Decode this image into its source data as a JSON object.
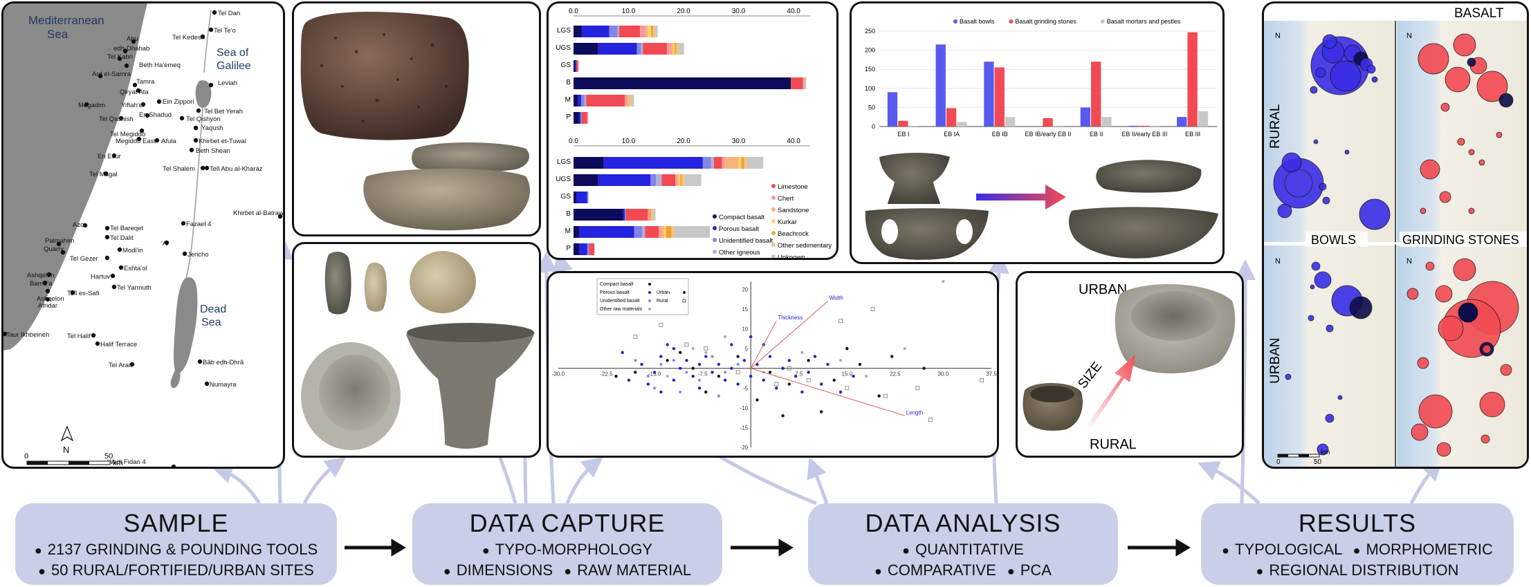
{
  "map": {
    "sea_labels": [
      "Mediterranean",
      "Sea"
    ],
    "galilee_labels": [
      "Sea of",
      "Galilee"
    ],
    "dead_sea_labels": [
      "Dead",
      "Sea"
    ],
    "north_label": "N",
    "scale": {
      "start": "0",
      "end": "50",
      "unit": "km"
    },
    "sites": [
      "Tel Dan",
      "Tel Te'o",
      "Tel Kedesh",
      "Abu",
      "edh-Dhahab",
      "Tel Kabri",
      "Beth Ha'emeq",
      "Ard el-Samra",
      "Tamra",
      "Qiryat Ata",
      "Ein Zippori",
      "Megadim",
      "Yiftah'el",
      "Tel Bet Yerah",
      "Leviah",
      "En Shadud",
      "Tel Qashish",
      "Tel Qishyon",
      "Tel Megiddo",
      "Yaqush",
      "Megiddo East",
      "Afula",
      "Khirbet et-Tuwal",
      "Beth Shean",
      "En Esur",
      "Tel Shalem",
      "Tell Abu al-Kharaz",
      "Tel Magal",
      "Khirbet al-Batrawy",
      "Fazael 4",
      "Azor",
      "Tel Bareqet",
      "Tel Dalit",
      "Palmahim",
      "Quarry",
      "'Ai",
      "Jericho",
      "Tel Gezer",
      "Modi'in",
      "Ashqelon",
      "Barne'a",
      "Eshta'ol",
      "Hartuv",
      "Tel Yarmuth",
      "Tell es-Safi",
      "Ashqelon",
      "Afridar",
      "Taur Ikhbeineh",
      "Tel Halif",
      "Halif Terrace",
      "Tel Arad",
      "Bâb edh-Dhrâ",
      "Numayra",
      "Wadi Fidan 4"
    ]
  },
  "top_chart": {
    "ticks": [
      "0.0",
      "10.0",
      "20.0",
      "30.0",
      "40.0"
    ],
    "categories": [
      "LGS",
      "UGS",
      "GS",
      "B",
      "M",
      "P"
    ]
  },
  "bottom_chart": {
    "ticks": [
      "0.0",
      "10.0",
      "20.0",
      "30.0",
      "40.0"
    ],
    "categories": [
      "LGS",
      "UGS",
      "GS",
      "B",
      "M",
      "P"
    ],
    "legend_left": [
      "Compact basalt",
      "Porous basalt",
      "Unidentified basalt",
      "Other igneous"
    ],
    "legend_right": [
      "Limestone",
      "Chert",
      "Sandstone",
      "Kurkar",
      "Beachrock",
      "Other sedimentary",
      "Unknown"
    ]
  },
  "chart_data": [
    {
      "type": "bar",
      "orientation": "horizontal",
      "stacked": true,
      "categories": [
        "LGS",
        "UGS",
        "GS",
        "B",
        "M",
        "P"
      ],
      "xlim": [
        0,
        43
      ],
      "series": [
        {
          "name": "Compact basalt",
          "color": "#0c0c5a",
          "values": [
            1.5,
            4.5,
            0.3,
            39.5,
            0.8,
            1.0
          ]
        },
        {
          "name": "Porous basalt",
          "color": "#2323e0",
          "values": [
            5,
            7,
            0.2,
            0,
            0.6,
            0.3
          ]
        },
        {
          "name": "Unidentified basalt",
          "color": "#8585e6",
          "values": [
            1.5,
            0.8,
            0,
            0,
            0.6,
            0.2
          ]
        },
        {
          "name": "Other igneous",
          "color": "#b0b0d8",
          "values": [
            0.3,
            0.3,
            0,
            0,
            0.3,
            0
          ]
        },
        {
          "name": "Limestone",
          "color": "#f24a52",
          "values": [
            3.8,
            4.4,
            0.3,
            2.2,
            7.0,
            1.0
          ]
        },
        {
          "name": "Chert",
          "color": "#f79a9a",
          "values": [
            1.0,
            0.8,
            0.1,
            0.3,
            0.5,
            0.1
          ]
        },
        {
          "name": "Sandstone",
          "color": "#f7b27a",
          "values": [
            0.4,
            0.3,
            0,
            0,
            0.3,
            0
          ]
        },
        {
          "name": "Kurkar",
          "color": "#fad56e",
          "values": [
            0.6,
            0.3,
            0,
            0,
            0.1,
            0
          ]
        },
        {
          "name": "Beachrock",
          "color": "#f3a030",
          "values": [
            0.4,
            0.3,
            0,
            0,
            0.1,
            0
          ]
        },
        {
          "name": "Other sedimentary",
          "color": "#f4c480",
          "values": [
            0.3,
            0.4,
            0,
            0,
            0.2,
            0
          ]
        },
        {
          "name": "Unknown",
          "color": "#c8c8c8",
          "values": [
            0.5,
            1.0,
            0.1,
            0.3,
            0.5,
            0.1
          ]
        }
      ]
    },
    {
      "type": "bar",
      "orientation": "horizontal",
      "stacked": true,
      "categories": [
        "LGS",
        "UGS",
        "GS",
        "B",
        "M",
        "P"
      ],
      "xlim": [
        0,
        43
      ],
      "series": [
        {
          "name": "Compact basalt",
          "color": "#0c0c5a",
          "values": [
            5.5,
            4.5,
            0.5,
            9.0,
            1.0,
            1.0
          ]
        },
        {
          "name": "Porous basalt",
          "color": "#2323e0",
          "values": [
            18,
            9.5,
            2.0,
            0.3,
            10.0,
            1.5
          ]
        },
        {
          "name": "Unidentified basalt",
          "color": "#8585e6",
          "values": [
            1.5,
            1.0,
            0.2,
            0.2,
            1.5,
            0.3
          ]
        },
        {
          "name": "Other igneous",
          "color": "#b0b0d8",
          "values": [
            0.5,
            1.0,
            0,
            0,
            0.5,
            0
          ]
        },
        {
          "name": "Limestone",
          "color": "#f24a52",
          "values": [
            1.5,
            2.5,
            0,
            4.0,
            2.5,
            1.0
          ]
        },
        {
          "name": "Chert",
          "color": "#f79a9a",
          "values": [
            0.5,
            0.3,
            0,
            0.3,
            0.5,
            0
          ]
        },
        {
          "name": "Sandstone",
          "color": "#f7b27a",
          "values": [
            2.5,
            0.3,
            0,
            0,
            0.5,
            0
          ]
        },
        {
          "name": "Kurkar",
          "color": "#fad56e",
          "values": [
            0.5,
            0.3,
            0,
            0,
            0.3,
            0
          ]
        },
        {
          "name": "Beachrock",
          "color": "#f3a030",
          "values": [
            0.5,
            0.3,
            0,
            0.3,
            1.0,
            0
          ]
        },
        {
          "name": "Other sedimentary",
          "color": "#f4c480",
          "values": [
            0.5,
            0.5,
            0,
            0.3,
            0.5,
            0
          ]
        },
        {
          "name": "Unknown",
          "color": "#c8c8c8",
          "values": [
            3.0,
            3.0,
            0,
            0.5,
            6.5,
            0
          ]
        }
      ]
    },
    {
      "type": "scatter",
      "xlim": [
        -30,
        37.5
      ],
      "ylim": [
        -20,
        22
      ],
      "x_ticks": [
        "-30.0",
        "-22.5",
        "-15.0",
        "-7.5",
        "7.5",
        "15.0",
        "22.5",
        "30.0",
        "37.5"
      ],
      "y_ticks": [
        "20",
        "15",
        "10",
        "5",
        "-5",
        "-10",
        "-15",
        "-20"
      ],
      "legend": [
        "Compact basalt",
        "Porous basalt",
        "Unidentified basalt",
        "Other raw materials",
        "Urban",
        "Rural"
      ],
      "loadings": [
        {
          "label": "Width",
          "x": 12,
          "y": 17
        },
        {
          "label": "Thickness",
          "x": 4,
          "y": 12
        },
        {
          "label": "Length",
          "x": 24,
          "y": -12
        }
      ],
      "points": {
        "compact": [
          [
            -18,
            -1
          ],
          [
            -13,
            2
          ],
          [
            -9,
            0
          ],
          [
            -5,
            -2
          ],
          [
            -2,
            3
          ],
          [
            3,
            -1
          ],
          [
            6,
            -4
          ],
          [
            9,
            2
          ],
          [
            13,
            -3
          ],
          [
            17,
            1
          ],
          [
            20,
            -7
          ],
          [
            -21,
            -2
          ],
          [
            -7,
            -6
          ],
          [
            1,
            -8
          ],
          [
            11,
            -11
          ],
          [
            15,
            5
          ],
          [
            22,
            3
          ],
          [
            -11,
            4
          ],
          [
            27,
            0
          ],
          [
            5,
            -12
          ]
        ],
        "porous": [
          [
            -20,
            4
          ],
          [
            -17,
            1
          ],
          [
            -15,
            -1
          ],
          [
            -14,
            3
          ],
          [
            -12,
            -3
          ],
          [
            -11,
            0
          ],
          [
            -10,
            2
          ],
          [
            -9,
            -2
          ],
          [
            -8,
            1
          ],
          [
            -7,
            3
          ],
          [
            -6,
            -1
          ],
          [
            -5,
            1
          ],
          [
            -4,
            -3
          ],
          [
            -3,
            0
          ],
          [
            -2,
            -4
          ],
          [
            -1,
            2
          ],
          [
            0,
            -2
          ],
          [
            1,
            1
          ],
          [
            2,
            -3
          ],
          [
            3,
            3
          ],
          [
            4,
            -5
          ],
          [
            5,
            0
          ],
          [
            6,
            2
          ],
          [
            7,
            -2
          ],
          [
            8,
            -6
          ],
          [
            9,
            -1
          ],
          [
            10,
            3
          ],
          [
            11,
            -4
          ],
          [
            12,
            1
          ],
          [
            -16,
            -4
          ],
          [
            -13,
            6
          ],
          [
            -12,
            5
          ],
          [
            -19,
            -3
          ],
          [
            -14,
            -6
          ],
          [
            0,
            8
          ],
          [
            14,
            -6
          ],
          [
            16,
            -2
          ],
          [
            -8,
            -5
          ],
          [
            -3,
            6
          ],
          [
            2,
            6
          ]
        ],
        "unidentified": [
          [
            -18,
            2
          ],
          [
            -16,
            -2
          ],
          [
            -14,
            1
          ],
          [
            -12,
            2
          ],
          [
            -10,
            -1
          ],
          [
            -8,
            -3
          ],
          [
            -6,
            3
          ],
          [
            -4,
            -1
          ],
          [
            -2,
            1
          ],
          [
            -15,
            -5
          ],
          [
            -11,
            -6
          ],
          [
            -5,
            -7
          ]
        ],
        "other": [
          [
            -13,
            -2
          ],
          [
            -7,
            4
          ],
          [
            2,
            -1
          ],
          [
            8,
            4
          ],
          [
            14,
            2
          ],
          [
            18,
            -2
          ],
          [
            24,
            5
          ],
          [
            30,
            22
          ],
          [
            -9,
            5
          ],
          [
            -4,
            8
          ]
        ],
        "urban_open": [
          [
            -7,
            5
          ],
          [
            -18,
            8
          ],
          [
            -14,
            11
          ],
          [
            -10,
            6
          ],
          [
            4,
            -4
          ],
          [
            15,
            -5
          ],
          [
            21,
            -7
          ],
          [
            26,
            -5
          ],
          [
            36,
            -3
          ],
          [
            28,
            -13
          ],
          [
            19,
            15
          ],
          [
            14,
            12
          ],
          [
            -2,
            -1
          ],
          [
            9,
            -3
          ],
          [
            6,
            0
          ]
        ]
      }
    },
    {
      "type": "bar",
      "categories": [
        "EB I",
        "EB IA",
        "EB IB",
        "EB IB/early EB II",
        "EB II",
        "EB II/early EB III",
        "EB III"
      ],
      "ylim": [
        0,
        250
      ],
      "y_ticks": [
        "0",
        "50",
        "100",
        "150",
        "200",
        "250"
      ],
      "series": [
        {
          "name": "Basalt bowls",
          "color": "#5a5af0",
          "values": [
            90,
            215,
            170,
            0,
            50,
            2,
            25
          ]
        },
        {
          "name": "Basalt grinding stones",
          "color": "#f24a52",
          "values": [
            15,
            48,
            155,
            22,
            170,
            2,
            247
          ]
        },
        {
          "name": "Basalt mortars and pestles",
          "color": "#c8c8c8",
          "values": [
            2,
            12,
            25,
            2,
            25,
            2,
            40
          ]
        }
      ]
    }
  ],
  "size_panel": {
    "urban": "URBAN",
    "size": "SIZE",
    "rural": "RURAL"
  },
  "results_panel": {
    "basalt": "BASALT",
    "rural": "RURAL",
    "urban": "URBAN",
    "bowls": "BOWLS",
    "grinding": "GRINDING STONES",
    "north": "N",
    "scale_start": "0",
    "scale_mid": "50",
    "scale_unit": "km"
  },
  "stages": {
    "sample": {
      "title": "SAMPLE",
      "line1": "2137 GRINDING & POUNDING TOOLS",
      "line2": "50 RURAL/FORTIFIED/URBAN SITES"
    },
    "capture": {
      "title": "DATA CAPTURE",
      "line1": "TYPO-MORPHOLOGY",
      "line2a": "DIMENSIONS",
      "line2b": "RAW MATERIAL"
    },
    "analysis": {
      "title": "DATA ANALYSIS",
      "line1": "QUANTITATIVE",
      "line2a": "COMPARATIVE",
      "line2b": "PCA"
    },
    "results": {
      "title": "RESULTS",
      "line1a": "TYPOLOGICAL",
      "line1b": "MORPHOMETRIC",
      "line2": "REGIONAL DISTRIBUTION"
    }
  },
  "colors": {
    "stage_bg": "#c9cfe8",
    "arrow": "#c3c9e6",
    "basalt_blue": "#3a2ee6",
    "grinding_red": "#f24a52"
  }
}
